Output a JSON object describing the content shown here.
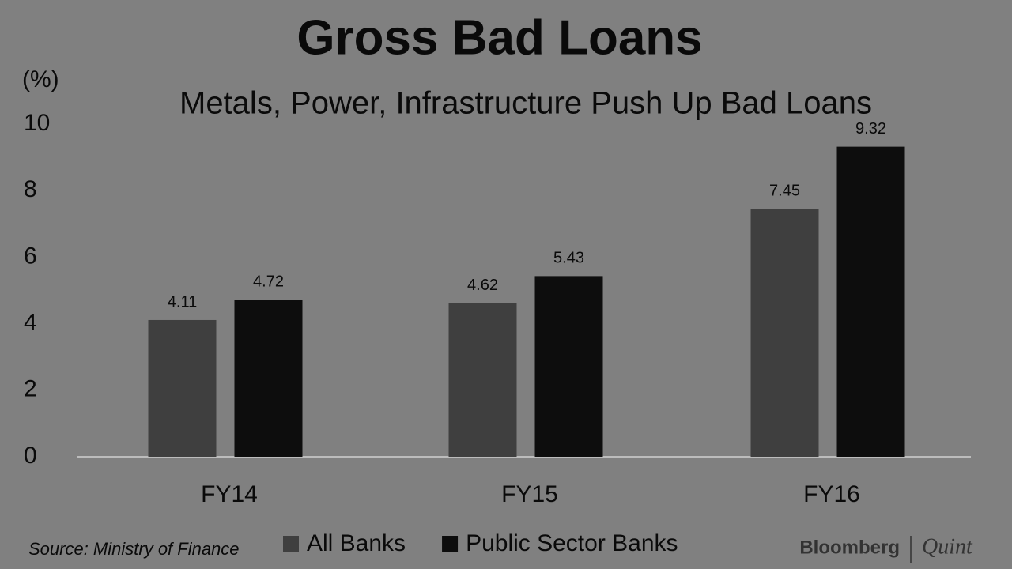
{
  "chart_data": {
    "type": "bar",
    "title": "Gross Bad Loans",
    "subtitle": "Metals, Power, Infrastructure Push Up Bad Loans",
    "y_label": "(%)",
    "categories": [
      "FY14",
      "FY15",
      "FY16"
    ],
    "series": [
      {
        "name": "All Banks",
        "color": "#3f3f3f",
        "values": [
          4.11,
          4.62,
          7.45
        ]
      },
      {
        "name": "Public Sector Banks",
        "color": "#0d0d0d",
        "values": [
          4.72,
          5.43,
          9.32
        ]
      }
    ],
    "ylim": [
      0,
      10
    ],
    "yticks": [
      0,
      2,
      4,
      6,
      8,
      10
    ],
    "grid": false,
    "legend": "bottom",
    "source": "Source: Ministry of Finance",
    "brand": [
      "Bloomberg",
      "Quint"
    ]
  }
}
